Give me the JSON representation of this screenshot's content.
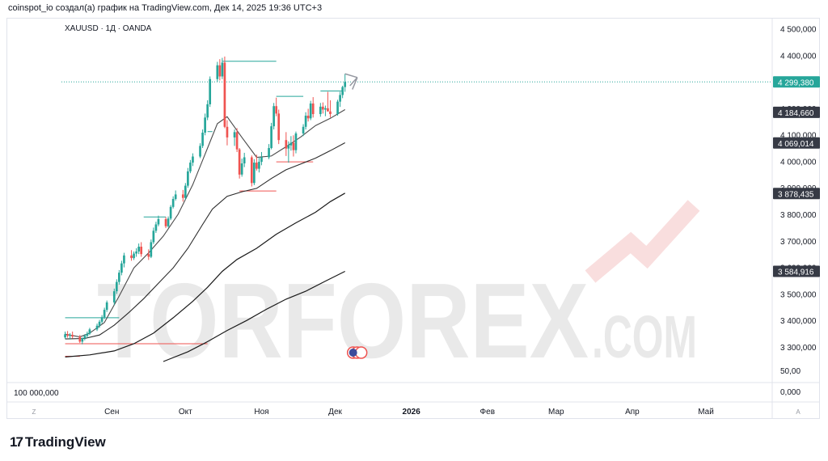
{
  "header": {
    "text": "coinspot_io создал(а) график на TradingView.com, Дек 14, 2025 19:36 UTC+3"
  },
  "symbol": {
    "text": "XAUUSD · 1Д · OANDA"
  },
  "watermark": {
    "main": "TORFOREX",
    "sub": ".COM"
  },
  "logo": {
    "mark": "17",
    "text": "TradingView"
  },
  "chart_data": {
    "type": "candlestick",
    "y_ticks": [
      "4 500,000",
      "4 400,000",
      "4 200,000",
      "4 100,000",
      "4 000,000",
      "3 900,000",
      "3 800,000",
      "3 700,000",
      "3 600,000",
      "3 500,000",
      "3 400,000",
      "3 300,000"
    ],
    "y_tick_values": [
      4500,
      4400,
      4200,
      4100,
      4000,
      3900,
      3800,
      3700,
      3600,
      3500,
      3400,
      3300
    ],
    "ylim": [
      3245,
      4535
    ],
    "price_labels": [
      {
        "text": "4 299,380",
        "value": 4299.38,
        "color": "#26a69a"
      },
      {
        "text": "4 184,660",
        "value": 4184.66,
        "color": "#363a45"
      },
      {
        "text": "4 069,014",
        "value": 4069.014,
        "color": "#363a45"
      },
      {
        "text": "3 878,435",
        "value": 3878.435,
        "color": "#363a45"
      },
      {
        "text": "3 584,916",
        "value": 3584.916,
        "color": "#363a45"
      }
    ],
    "volume_ticks": [
      "50,00",
      "0,000"
    ],
    "volume_left_label": "100 000,000",
    "x_labels": [
      {
        "text": "Сен",
        "day": 19
      },
      {
        "text": "Окт",
        "day": 49
      },
      {
        "text": "Ноя",
        "day": 80
      },
      {
        "text": "Дек",
        "day": 110
      },
      {
        "text": "2026",
        "day": 141
      },
      {
        "text": "Фев",
        "day": 172
      },
      {
        "text": "Мар",
        "day": 200
      },
      {
        "text": "Апр",
        "day": 231
      },
      {
        "text": "Май",
        "day": 261
      }
    ],
    "x_corner_left": "Z",
    "x_corner_right": "A",
    "xlim": [
      -1.5,
      288
    ],
    "candles": [
      [
        0,
        3336,
        3358,
        3330,
        3348
      ],
      [
        1,
        3348,
        3360,
        3335,
        3342
      ],
      [
        2,
        3342,
        3352,
        3328,
        3345
      ],
      [
        3,
        3345,
        3358,
        3332,
        3339
      ],
      [
        6,
        3339,
        3345,
        3315,
        3320
      ],
      [
        7,
        3320,
        3336,
        3310,
        3333
      ],
      [
        8,
        3333,
        3348,
        3325,
        3342
      ],
      [
        9,
        3342,
        3358,
        3334,
        3350
      ],
      [
        10,
        3350,
        3372,
        3345,
        3366
      ],
      [
        13,
        3366,
        3388,
        3360,
        3380
      ],
      [
        14,
        3380,
        3402,
        3372,
        3395
      ],
      [
        15,
        3395,
        3420,
        3388,
        3412
      ],
      [
        16,
        3412,
        3448,
        3405,
        3440
      ],
      [
        17,
        3440,
        3475,
        3432,
        3468
      ],
      [
        20,
        3468,
        3520,
        3458,
        3510
      ],
      [
        21,
        3510,
        3555,
        3500,
        3545
      ],
      [
        22,
        3545,
        3590,
        3535,
        3580
      ],
      [
        23,
        3580,
        3625,
        3570,
        3615
      ],
      [
        24,
        3615,
        3655,
        3600,
        3645
      ],
      [
        27,
        3645,
        3665,
        3625,
        3635
      ],
      [
        28,
        3635,
        3660,
        3628,
        3652
      ],
      [
        29,
        3652,
        3672,
        3640,
        3660
      ],
      [
        30,
        3660,
        3690,
        3650,
        3678
      ],
      [
        31,
        3678,
        3695,
        3640,
        3650
      ],
      [
        34,
        3650,
        3668,
        3628,
        3640
      ],
      [
        35,
        3640,
        3705,
        3635,
        3695
      ],
      [
        36,
        3695,
        3750,
        3688,
        3738
      ],
      [
        37,
        3738,
        3772,
        3730,
        3762
      ],
      [
        38,
        3762,
        3795,
        3755,
        3782
      ],
      [
        41,
        3782,
        3790,
        3748,
        3755
      ],
      [
        42,
        3755,
        3792,
        3750,
        3784
      ],
      [
        43,
        3784,
        3835,
        3778,
        3828
      ],
      [
        44,
        3828,
        3868,
        3822,
        3858
      ],
      [
        45,
        3858,
        3890,
        3852,
        3875
      ],
      [
        48,
        3875,
        3892,
        3848,
        3862
      ],
      [
        49,
        3862,
        3918,
        3855,
        3908
      ],
      [
        50,
        3908,
        3975,
        3900,
        3962
      ],
      [
        51,
        3962,
        4005,
        3955,
        3995
      ],
      [
        52,
        3995,
        4030,
        3982,
        4018
      ],
      [
        55,
        4018,
        4068,
        4012,
        4058
      ],
      [
        56,
        4058,
        4120,
        4050,
        4108
      ],
      [
        57,
        4108,
        4180,
        4098,
        4165
      ],
      [
        58,
        4165,
        4230,
        4155,
        4215
      ],
      [
        59,
        4215,
        4320,
        4205,
        4310
      ],
      [
        62,
        4310,
        4375,
        4300,
        4362
      ],
      [
        63,
        4362,
        4385,
        4305,
        4320
      ],
      [
        64,
        4320,
        4390,
        4310,
        4372
      ],
      [
        65,
        4372,
        4395,
        4125,
        4130
      ],
      [
        66,
        4130,
        4155,
        4060,
        4090
      ],
      [
        69,
        4090,
        4120,
        4058,
        4110
      ],
      [
        70,
        4110,
        4125,
        4035,
        4045
      ],
      [
        71,
        4045,
        4050,
        3935,
        3950
      ],
      [
        72,
        3950,
        4010,
        3942,
        3992
      ],
      [
        73,
        3992,
        4032,
        3978,
        4015
      ],
      [
        76,
        4015,
        4022,
        3905,
        3918
      ],
      [
        77,
        3918,
        4008,
        3910,
        3995
      ],
      [
        78,
        3995,
        4025,
        3965,
        3972
      ],
      [
        79,
        3972,
        4015,
        3958,
        3998
      ],
      [
        80,
        3998,
        4035,
        3985,
        4015
      ],
      [
        83,
        4015,
        4065,
        4008,
        4050
      ],
      [
        84,
        4050,
        4145,
        4045,
        4132
      ],
      [
        85,
        4132,
        4220,
        4120,
        4208
      ],
      [
        86,
        4208,
        4240,
        4170,
        4180
      ],
      [
        87,
        4180,
        4195,
        4065,
        4080
      ],
      [
        90,
        4080,
        4110,
        4020,
        4048
      ],
      [
        91,
        4048,
        4075,
        3995,
        4060
      ],
      [
        92,
        4060,
        4095,
        4040,
        4070
      ],
      [
        93,
        4070,
        4098,
        4018,
        4042
      ],
      [
        94,
        4042,
        4112,
        4030,
        4105
      ],
      [
        97,
        4105,
        4140,
        4095,
        4130
      ],
      [
        98,
        4130,
        4185,
        4120,
        4172
      ],
      [
        99,
        4172,
        4198,
        4150,
        4162
      ],
      [
        100,
        4162,
        4228,
        4155,
        4218
      ],
      [
        101,
        4218,
        4242,
        4165,
        4178
      ],
      [
        104,
        4178,
        4220,
        4168,
        4206
      ],
      [
        105,
        4206,
        4222,
        4180,
        4195
      ],
      [
        106,
        4195,
        4210,
        4170,
        4200
      ],
      [
        107,
        4200,
        4262,
        4188,
        4188
      ],
      [
        108,
        4188,
        4230,
        4165,
        4178
      ],
      [
        111,
        4178,
        4232,
        4172,
        4225
      ],
      [
        112,
        4225,
        4262,
        4205,
        4250
      ],
      [
        113,
        4250,
        4285,
        4238,
        4280
      ],
      [
        114,
        4280,
        4330,
        4262,
        4299
      ]
    ],
    "candle_width_days": 0.55,
    "moving_averages": [
      {
        "color": "#4a4a4a",
        "width": 1.1,
        "points": [
          [
            0,
            3348
          ],
          [
            6,
            3338
          ],
          [
            10,
            3352
          ],
          [
            16,
            3392
          ],
          [
            22,
            3492
          ],
          [
            28,
            3598
          ],
          [
            34,
            3655
          ],
          [
            40,
            3718
          ],
          [
            46,
            3800
          ],
          [
            52,
            3912
          ],
          [
            58,
            4050
          ],
          [
            62,
            4142
          ],
          [
            66,
            4168
          ],
          [
            72,
            4090
          ],
          [
            78,
            4015
          ],
          [
            84,
            4020
          ],
          [
            90,
            4055
          ],
          [
            96,
            4092
          ],
          [
            102,
            4135
          ],
          [
            108,
            4162
          ],
          [
            114,
            4195
          ]
        ]
      },
      {
        "color": "#2a2a2a",
        "width": 1.1,
        "points": [
          [
            0,
            3330
          ],
          [
            8,
            3332
          ],
          [
            14,
            3345
          ],
          [
            20,
            3382
          ],
          [
            26,
            3430
          ],
          [
            32,
            3482
          ],
          [
            38,
            3540
          ],
          [
            44,
            3598
          ],
          [
            50,
            3672
          ],
          [
            56,
            3762
          ],
          [
            60,
            3820
          ],
          [
            66,
            3868
          ],
          [
            72,
            3885
          ],
          [
            78,
            3898
          ],
          [
            84,
            3935
          ],
          [
            90,
            3968
          ],
          [
            96,
            3990
          ],
          [
            102,
            4012
          ],
          [
            108,
            4040
          ],
          [
            114,
            4070
          ]
        ]
      },
      {
        "color": "#1a1a1a",
        "width": 1.2,
        "points": [
          [
            0,
            3262
          ],
          [
            10,
            3270
          ],
          [
            20,
            3285
          ],
          [
            28,
            3312
          ],
          [
            36,
            3352
          ],
          [
            44,
            3410
          ],
          [
            52,
            3472
          ],
          [
            58,
            3525
          ],
          [
            64,
            3585
          ],
          [
            70,
            3630
          ],
          [
            78,
            3672
          ],
          [
            86,
            3725
          ],
          [
            94,
            3768
          ],
          [
            102,
            3808
          ],
          [
            108,
            3848
          ],
          [
            114,
            3880
          ]
        ]
      },
      {
        "color": "#1a1a1a",
        "width": 1.2,
        "points": [
          [
            40,
            3245
          ],
          [
            50,
            3282
          ],
          [
            58,
            3320
          ],
          [
            66,
            3362
          ],
          [
            74,
            3400
          ],
          [
            82,
            3442
          ],
          [
            90,
            3480
          ],
          [
            98,
            3510
          ],
          [
            106,
            3548
          ],
          [
            114,
            3585
          ]
        ]
      }
    ],
    "segments": [
      {
        "x1": 0,
        "x2": 22,
        "y": 3410,
        "color": "#26a69a"
      },
      {
        "x1": 0,
        "x2": 58,
        "y": 3312,
        "color": "#ef5350"
      },
      {
        "x1": 0,
        "x2": 6,
        "y": 3265,
        "color": "#ef5350"
      },
      {
        "x1": 32,
        "x2": 41,
        "y": 3790,
        "color": "#26a69a"
      },
      {
        "x1": 58,
        "x2": 60,
        "y": 4112,
        "color": "#26a69a"
      },
      {
        "x1": 64,
        "x2": 86,
        "y": 4377,
        "color": "#26a69a"
      },
      {
        "x1": 71,
        "x2": 86,
        "y": 3888,
        "color": "#ef5350"
      },
      {
        "x1": 86,
        "x2": 97,
        "y": 4245,
        "color": "#26a69a"
      },
      {
        "x1": 86,
        "x2": 101,
        "y": 3998,
        "color": "#ef5350"
      },
      {
        "x1": 104,
        "x2": 113,
        "y": 4265,
        "color": "#26a69a"
      }
    ],
    "projection_arrow": {
      "from": [
        114,
        4330
      ],
      "to": [
        119,
        4316
      ],
      "head_from": [
        116,
        4345
      ]
    },
    "current_price": 4299.38
  }
}
